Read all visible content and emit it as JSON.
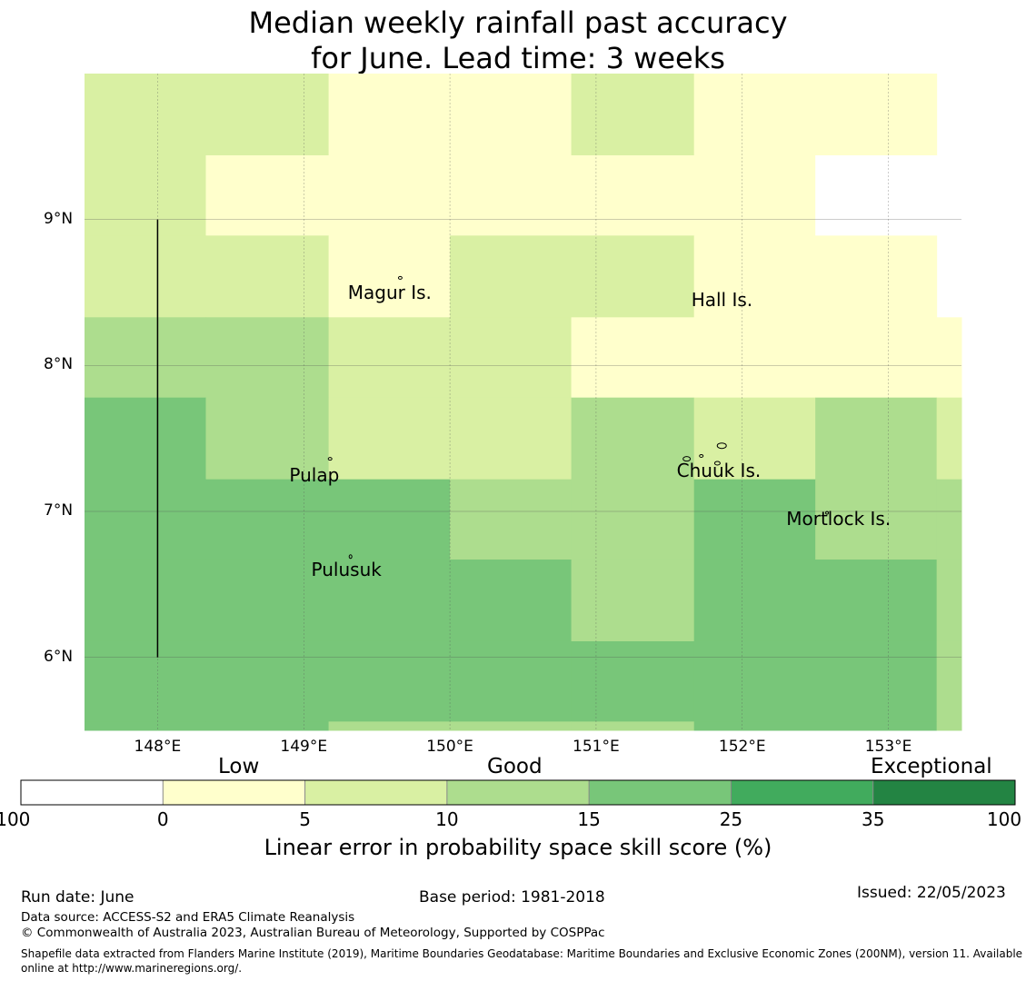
{
  "title": {
    "line1": "Median weekly rainfall past accuracy",
    "line2": "for June. Lead time: 3 weeks"
  },
  "map": {
    "lon_range": [
      147.5,
      153.5
    ],
    "lat_range": [
      5.5,
      10.0
    ],
    "lat_ticks": [
      {
        "value": 9,
        "label": "9°N"
      },
      {
        "value": 8,
        "label": "8°N"
      },
      {
        "value": 7,
        "label": "7°N"
      },
      {
        "value": 6,
        "label": "6°N"
      }
    ],
    "lon_ticks": [
      {
        "value": 148,
        "label": "148°E"
      },
      {
        "value": 149,
        "label": "149°E"
      },
      {
        "value": 150,
        "label": "150°E"
      },
      {
        "value": 151,
        "label": "151°E"
      },
      {
        "value": 152,
        "label": "152°E"
      },
      {
        "value": 153,
        "label": "153°E"
      }
    ],
    "places": [
      {
        "name": "Magur Is.",
        "lon": 149.6,
        "lat": 8.5
      },
      {
        "name": "Hall Is.",
        "lon": 151.95,
        "lat": 8.45
      },
      {
        "name": "Pulap",
        "lon": 149.2,
        "lat": 7.25
      },
      {
        "name": "Chuuk Is.",
        "lon": 151.85,
        "lat": 7.28
      },
      {
        "name": "Mortlock Is.",
        "lon": 152.6,
        "lat": 6.95
      },
      {
        "name": "Pulusuk",
        "lon": 149.35,
        "lat": 6.6
      }
    ]
  },
  "legend": {
    "categories": [
      "Low",
      "Good",
      "Exceptional"
    ],
    "ticks": [
      "-100",
      "0",
      "5",
      "10",
      "15",
      "25",
      "35",
      "100"
    ],
    "colors": [
      "#ffffff",
      "#ffffcc",
      "#d9f0a3",
      "#addd8e",
      "#78c679",
      "#41ab5d",
      "#238443"
    ],
    "label": "Linear error in probability space skill score (%)"
  },
  "footer": {
    "run_date": "Run date: June",
    "base_period": "Base period: 1981-2018",
    "issued": "Issued: 22/05/2023",
    "data_source": "Data source: ACCESS-S2 and ERA5 Climate Reanalysis",
    "copyright": "© Commonwealth of Australia 2023, Australian Bureau of Meteorology, Supported by COSPPac",
    "shapefile": "Shapefile data extracted from Flanders Marine Institute (2019), Maritime Boundaries Geodatabase: Maritime Boundaries and Exclusive Economic Zones (200NM), version 11. Available online at http://www.marineregions.org/."
  },
  "chart_data": {
    "type": "heatmap",
    "title": "Median weekly rainfall past accuracy for June. Lead time: 3 weeks",
    "xlabel": "",
    "ylabel": "",
    "x": [
      "147.5-148.33",
      "148.33-149.17",
      "149.17-150.0",
      "150.0-150.83",
      "150.83-151.67",
      "151.67-152.5",
      "152.5-153.33",
      "153.33-153.5"
    ],
    "y": [
      "9.44-10.0",
      "8.89-9.44",
      "8.33-8.89",
      "7.78-8.33",
      "7.22-7.78",
      "6.67-7.22",
      "6.11-6.67",
      "5.56-6.11",
      "5.5-5.56"
    ],
    "colorbar_bins": [
      "-100",
      "0",
      "5",
      "10",
      "15",
      "25",
      "35",
      "100"
    ],
    "values": [
      [
        2,
        2,
        1,
        1,
        2,
        1,
        1,
        null
      ],
      [
        2,
        1,
        1,
        1,
        1,
        1,
        0,
        null
      ],
      [
        2,
        2,
        1,
        2,
        2,
        1,
        1,
        null
      ],
      [
        3,
        3,
        2,
        2,
        1,
        1,
        1,
        1
      ],
      [
        4,
        3,
        2,
        2,
        3,
        2,
        3,
        2
      ],
      [
        4,
        4,
        4,
        3,
        3,
        4,
        3,
        3
      ],
      [
        4,
        4,
        4,
        4,
        3,
        4,
        4,
        3
      ],
      [
        4,
        4,
        4,
        4,
        4,
        4,
        4,
        3
      ],
      [
        4,
        4,
        3,
        3,
        3,
        4,
        4,
        3
      ]
    ],
    "value_encoding": "index into colorbar_bins bins (0: -100 to 0, 1: 0 to 5, 2: 5 to 10, 3: 10 to 15, 4: 15 to 25, 5: 25 to 35, 6: 35 to 100); null = no data"
  }
}
